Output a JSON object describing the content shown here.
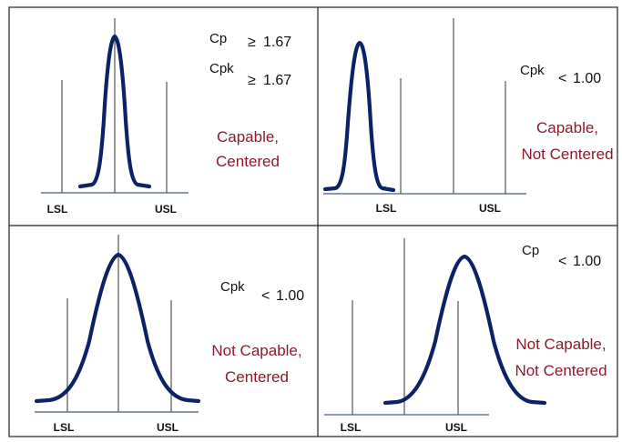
{
  "labels": {
    "lsl": "LSL",
    "usl": "USL"
  },
  "colors": {
    "curve": "#0b2266",
    "verdict": "#8b1a2b",
    "axis": "#8a9aae"
  },
  "panels": [
    {
      "metrics": [
        {
          "name": "Cp",
          "relation": "≥",
          "value": "1.67"
        },
        {
          "name": "Cpk",
          "relation": "≥",
          "value": "1.67"
        }
      ],
      "verdict": [
        "Capable,",
        "Centered"
      ]
    },
    {
      "metrics": [
        {
          "name": "Cpk",
          "relation": "<",
          "value": "1.00"
        }
      ],
      "verdict": [
        "Capable,",
        "Not Centered"
      ]
    },
    {
      "metrics": [
        {
          "name": "Cpk",
          "relation": "<",
          "value": "1.00"
        }
      ],
      "verdict": [
        "Not Capable,",
        "Centered"
      ]
    },
    {
      "metrics": [
        {
          "name": "Cp",
          "relation": "<",
          "value": "1.00"
        }
      ],
      "verdict": [
        "Not Capable,",
        "Not Centered"
      ]
    }
  ]
}
